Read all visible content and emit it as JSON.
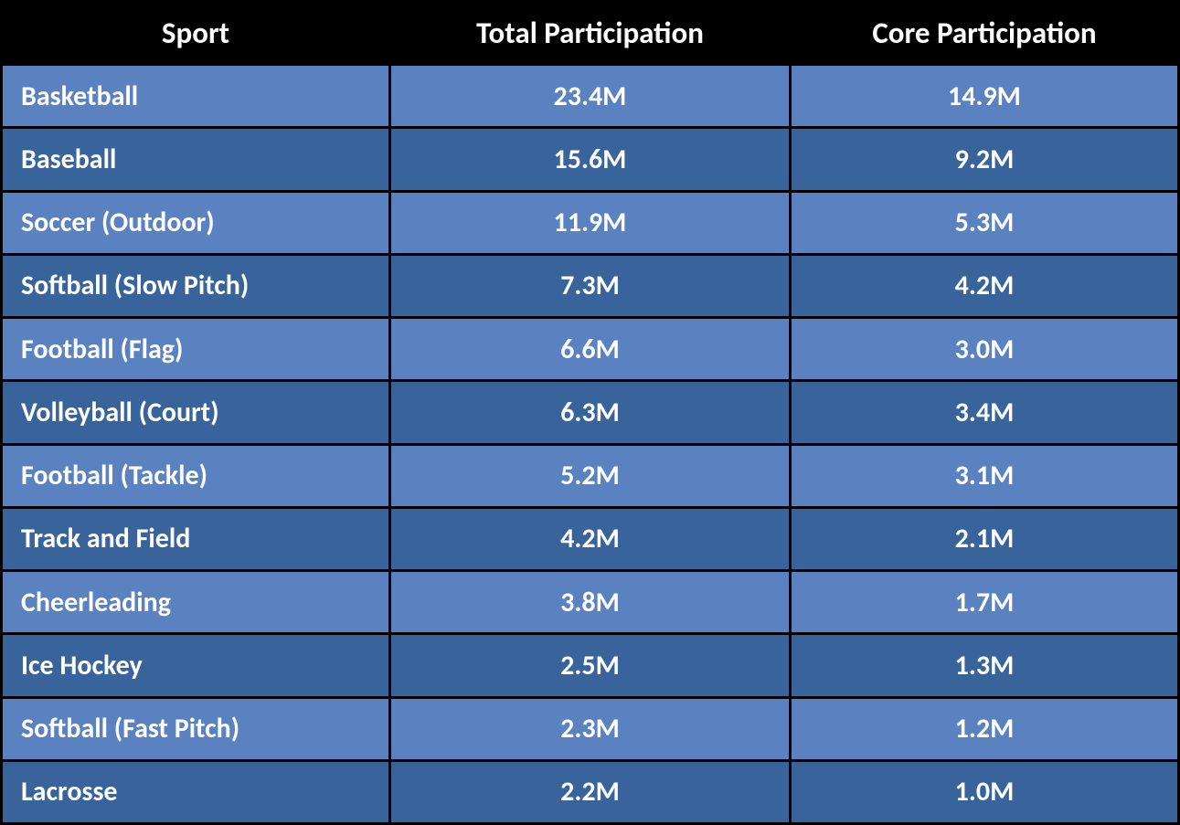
{
  "table": {
    "type": "table",
    "background_color": "#000000",
    "border_color": "#000000",
    "border_width": 3,
    "header_background": "#000000",
    "header_text_color": "#ffffff",
    "header_fontsize": 33,
    "header_fontweight": "bold",
    "cell_text_color": "#ffffff",
    "cell_fontsize": 30,
    "cell_fontweight": "bold",
    "row_colors": {
      "light": "#5b82c0",
      "dark": "#39649b"
    },
    "column_widths": [
      "33%",
      "34%",
      "33%"
    ],
    "column_alignments": [
      "left",
      "center",
      "center"
    ],
    "columns": [
      "Sport",
      "Total Participation",
      "Core Participation"
    ],
    "rows": [
      {
        "shade": "light",
        "cells": [
          "Basketball",
          "23.4M",
          "14.9M"
        ]
      },
      {
        "shade": "dark",
        "cells": [
          "Baseball",
          "15.6M",
          "9.2M"
        ]
      },
      {
        "shade": "light",
        "cells": [
          "Soccer (Outdoor)",
          "11.9M",
          "5.3M"
        ]
      },
      {
        "shade": "dark",
        "cells": [
          "Softball (Slow Pitch)",
          "7.3M",
          "4.2M"
        ]
      },
      {
        "shade": "light",
        "cells": [
          "Football (Flag)",
          "6.6M",
          "3.0M"
        ]
      },
      {
        "shade": "dark",
        "cells": [
          "Volleyball (Court)",
          "6.3M",
          "3.4M"
        ]
      },
      {
        "shade": "light",
        "cells": [
          "Football (Tackle)",
          "5.2M",
          "3.1M"
        ]
      },
      {
        "shade": "dark",
        "cells": [
          "Track and Field",
          "4.2M",
          "2.1M"
        ]
      },
      {
        "shade": "light",
        "cells": [
          "Cheerleading",
          "3.8M",
          "1.7M"
        ]
      },
      {
        "shade": "dark",
        "cells": [
          "Ice Hockey",
          "2.5M",
          "1.3M"
        ]
      },
      {
        "shade": "light",
        "cells": [
          "Softball (Fast Pitch)",
          "2.3M",
          "1.2M"
        ]
      },
      {
        "shade": "dark",
        "cells": [
          "Lacrosse",
          "2.2M",
          "1.0M"
        ]
      }
    ]
  }
}
